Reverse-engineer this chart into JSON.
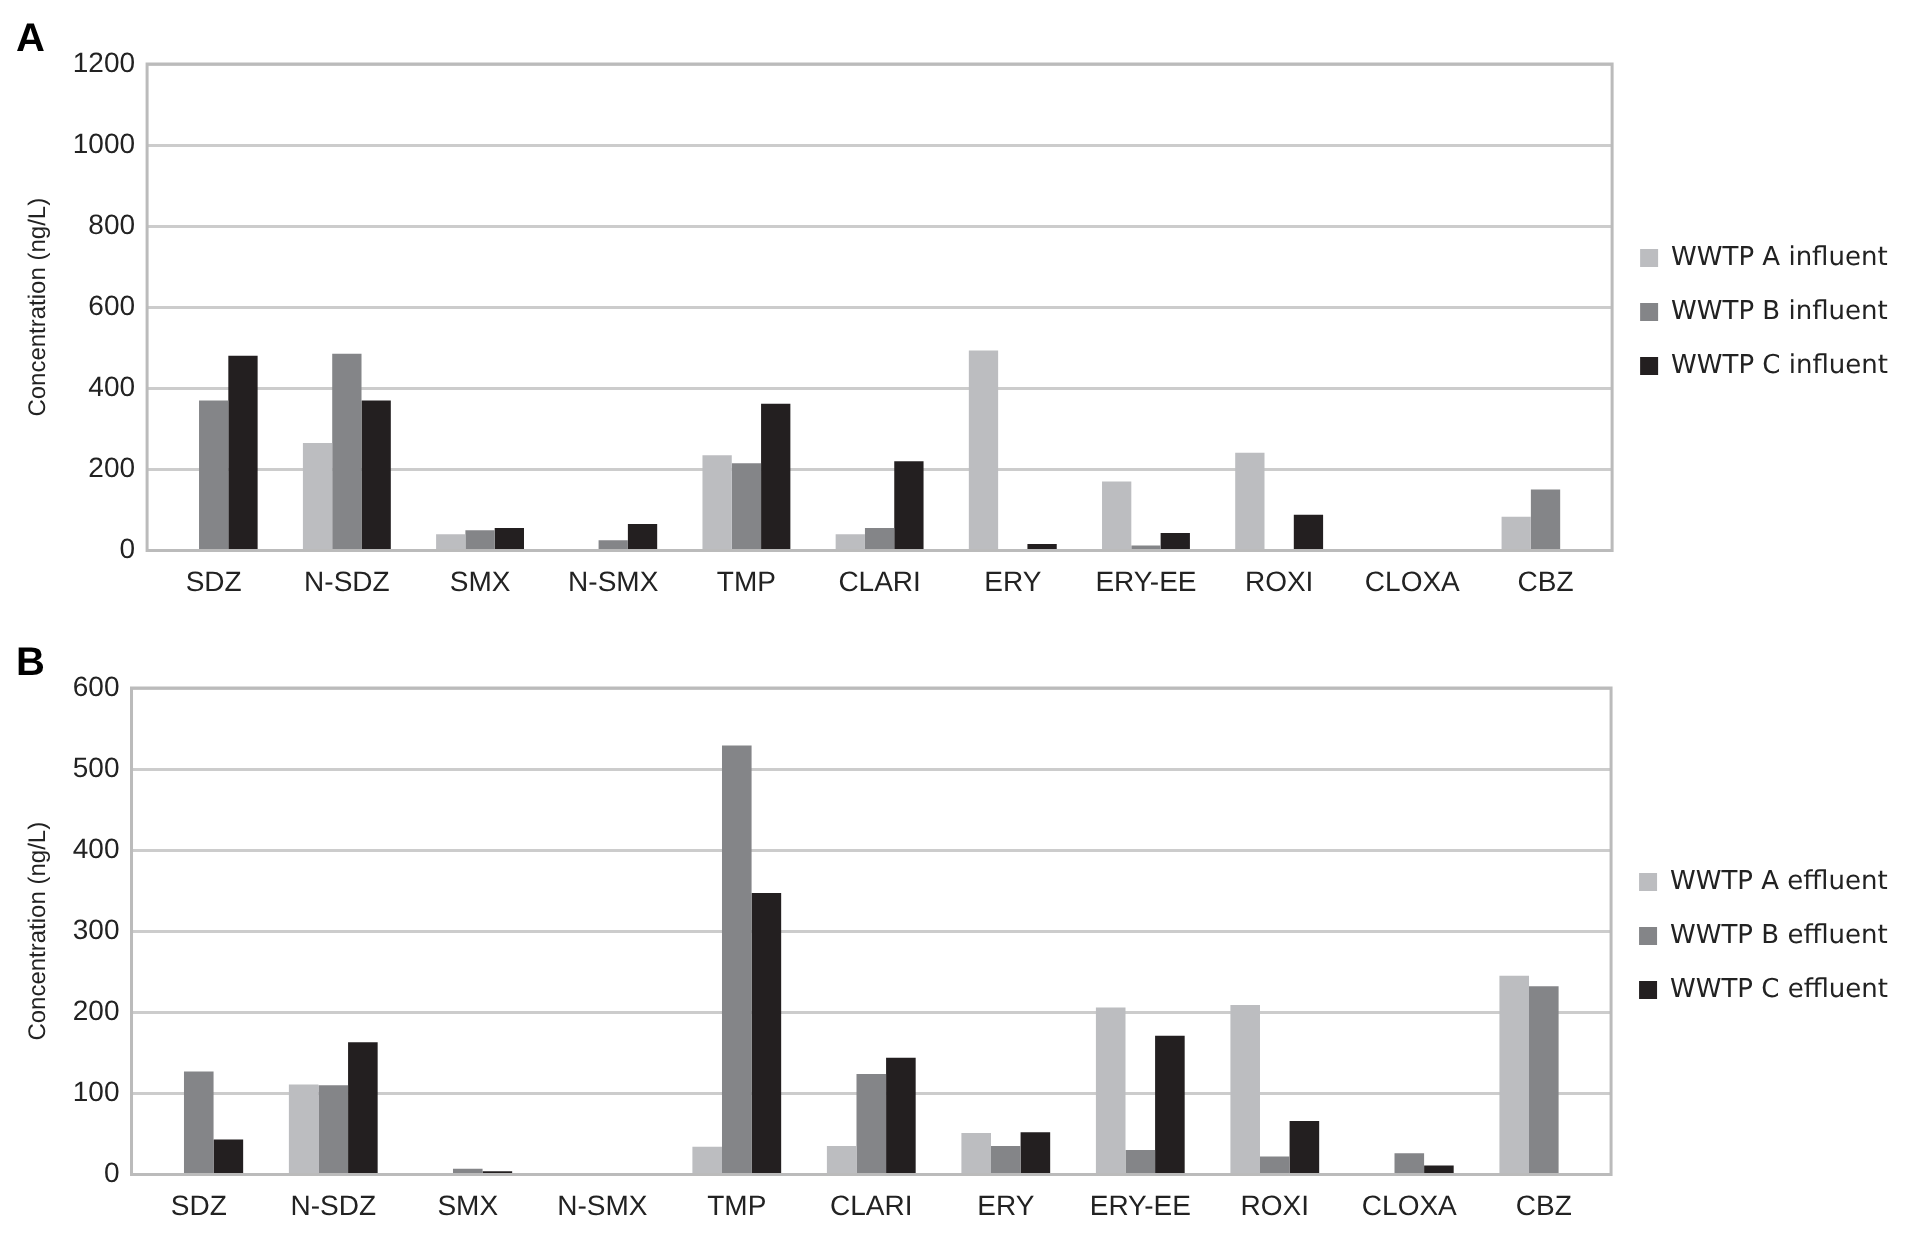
{
  "chart_data": [
    {
      "type": "bar",
      "title": "A",
      "ylabel": "Concentration (ng/L)",
      "categories": [
        "SDZ",
        "N-SDZ",
        "SMX",
        "N-SMX",
        "TMP",
        "CLARI",
        "ERY",
        "ERY-EE",
        "ROXI",
        "CLOXA",
        "CBZ"
      ],
      "ylim": [
        0,
        1200
      ],
      "yticks": [
        0,
        200,
        400,
        600,
        800,
        1000,
        1200
      ],
      "grid": "y",
      "legend": "right",
      "series": [
        {
          "name": "WWTP A influent",
          "color": "#bcbdc0",
          "values": [
            null,
            265,
            40,
            0,
            235,
            40,
            493,
            170,
            241,
            0,
            83
          ]
        },
        {
          "name": "WWTP B influent",
          "color": "#848588",
          "values": [
            370,
            485,
            50,
            25,
            215,
            55,
            3,
            12,
            2,
            0,
            150
          ]
        },
        {
          "name": "WWTP C influent",
          "color": "#231f20",
          "values": [
            480,
            370,
            55,
            65,
            362,
            220,
            16,
            43,
            88,
            0,
            null
          ]
        }
      ]
    },
    {
      "type": "bar",
      "title": "B",
      "ylabel": "Concentration (ng/L)",
      "categories": [
        "SDZ",
        "N-SDZ",
        "SMX",
        "N-SMX",
        "TMP",
        "CLARI",
        "ERY",
        "ERY-EE",
        "ROXI",
        "CLOXA",
        "CBZ"
      ],
      "ylim": [
        0,
        600
      ],
      "yticks": [
        0,
        100,
        200,
        300,
        400,
        500,
        600
      ],
      "grid": "y",
      "legend": "right",
      "series": [
        {
          "name": "WWTP A effluent",
          "color": "#bcbdc0",
          "values": [
            null,
            111,
            0,
            0,
            34,
            35,
            51,
            206,
            209,
            0,
            245
          ]
        },
        {
          "name": "WWTP B effluent",
          "color": "#848588",
          "values": [
            127,
            110,
            7,
            0,
            529,
            124,
            35,
            30,
            22,
            26,
            232
          ]
        },
        {
          "name": "WWTP C effluent",
          "color": "#231f20",
          "values": [
            43,
            163,
            4,
            0,
            347,
            144,
            52,
            171,
            66,
            11,
            null
          ]
        }
      ]
    }
  ]
}
